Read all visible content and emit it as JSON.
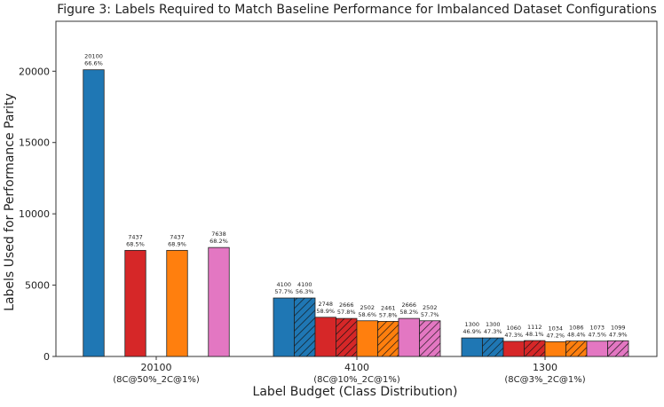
{
  "chart_data": {
    "type": "bar",
    "title": "Figure 3: Labels Required to Match Baseline Performance for Imbalanced Dataset Configurations",
    "xlabel": "Label Budget (Class Distribution)",
    "ylabel": "Labels Used for Performance Parity",
    "ylim": [
      0,
      23500
    ],
    "yticks": [
      0,
      5000,
      10000,
      15000,
      20000
    ],
    "yticklabels": [
      "0",
      "5000",
      "10000",
      "15000",
      "20000"
    ],
    "grid": false,
    "legend": "none",
    "groups": [
      {
        "label_line1": "20100",
        "label_line2": "(8C@50%_2C@1%)",
        "bars": [
          {
            "value": 20100,
            "label_value": "20100",
            "label_pct": "66.6%",
            "color": "#1f77b4",
            "hatched": false
          },
          {
            "value": 7437,
            "label_value": "7437",
            "label_pct": "68.5%",
            "color": "#d62728",
            "hatched": false
          },
          {
            "value": 7437,
            "label_value": "7437",
            "label_pct": "68.9%",
            "color": "#ff7f0e",
            "hatched": false
          },
          {
            "value": 7638,
            "label_value": "7638",
            "label_pct": "68.2%",
            "color": "#e377c2",
            "hatched": false
          }
        ]
      },
      {
        "label_line1": "4100",
        "label_line2": "(8C@10%_2C@1%)",
        "bars": [
          {
            "value": 4100,
            "label_value": "4100",
            "label_pct": "57.7%",
            "color": "#1f77b4",
            "hatched": false
          },
          {
            "value": 4100,
            "label_value": "4100",
            "label_pct": "56.3%",
            "color": "#1f77b4",
            "hatched": true
          },
          {
            "value": 2748,
            "label_value": "2748",
            "label_pct": "58.9%",
            "color": "#d62728",
            "hatched": false
          },
          {
            "value": 2666,
            "label_value": "2666",
            "label_pct": "57.8%",
            "color": "#d62728",
            "hatched": true
          },
          {
            "value": 2502,
            "label_value": "2502",
            "label_pct": "58.6%",
            "color": "#ff7f0e",
            "hatched": false
          },
          {
            "value": 2461,
            "label_value": "2461",
            "label_pct": "57.8%",
            "color": "#ff7f0e",
            "hatched": true
          },
          {
            "value": 2666,
            "label_value": "2666",
            "label_pct": "58.2%",
            "color": "#e377c2",
            "hatched": false
          },
          {
            "value": 2502,
            "label_value": "2502",
            "label_pct": "57.7%",
            "color": "#e377c2",
            "hatched": true
          }
        ]
      },
      {
        "label_line1": "1300",
        "label_line2": "(8C@3%_2C@1%)",
        "bars": [
          {
            "value": 1300,
            "label_value": "1300",
            "label_pct": "46.9%",
            "color": "#1f77b4",
            "hatched": false
          },
          {
            "value": 1300,
            "label_value": "1300",
            "label_pct": "47.3%",
            "color": "#1f77b4",
            "hatched": true
          },
          {
            "value": 1060,
            "label_value": "1060",
            "label_pct": "47.3%",
            "color": "#d62728",
            "hatched": false
          },
          {
            "value": 1112,
            "label_value": "1112",
            "label_pct": "48.1%",
            "color": "#d62728",
            "hatched": true
          },
          {
            "value": 1034,
            "label_value": "1034",
            "label_pct": "47.2%",
            "color": "#ff7f0e",
            "hatched": false
          },
          {
            "value": 1086,
            "label_value": "1086",
            "label_pct": "48.4%",
            "color": "#ff7f0e",
            "hatched": true
          },
          {
            "value": 1073,
            "label_value": "1073",
            "label_pct": "47.5%",
            "color": "#e377c2",
            "hatched": false
          },
          {
            "value": 1099,
            "label_value": "1099",
            "label_pct": "47.9%",
            "color": "#e377c2",
            "hatched": true
          }
        ]
      }
    ]
  }
}
